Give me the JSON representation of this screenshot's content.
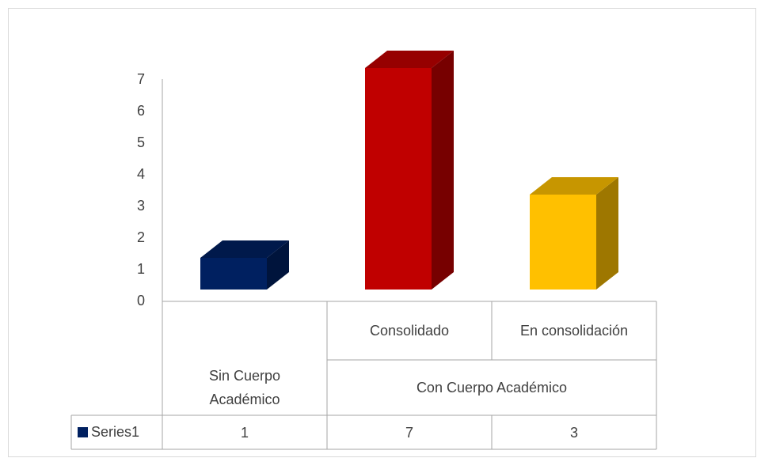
{
  "chart_data": {
    "type": "bar3d",
    "categories": [
      null,
      "Consolidado",
      "En consolidación"
    ],
    "groups": [
      {
        "name": "Sin Cuerpo Académico",
        "categories": [
          0
        ]
      },
      {
        "name": "Con Cuerpo Académico",
        "categories": [
          1,
          2
        ]
      }
    ],
    "series": [
      {
        "name": "Series1",
        "color": "#002060",
        "point_colors": [
          "#002060",
          "#c00000",
          "#ffc000"
        ],
        "values": [
          1,
          7,
          3
        ]
      }
    ],
    "ylim": [
      0,
      7
    ],
    "yticks": [
      0,
      1,
      2,
      3,
      4,
      5,
      6,
      7
    ],
    "grid": false,
    "data_table": true
  }
}
